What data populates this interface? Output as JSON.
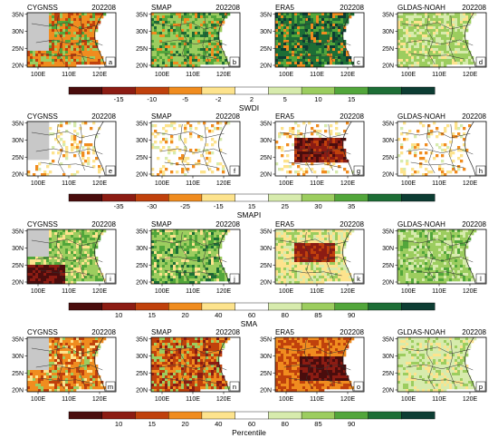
{
  "figure": {
    "rows": [
      {
        "panels": [
          {
            "source": "CYGNSS",
            "date": "202208",
            "letter": "a"
          },
          {
            "source": "SMAP",
            "date": "202208",
            "letter": "b"
          },
          {
            "source": "ERA5",
            "date": "202208",
            "letter": "c"
          },
          {
            "source": "GLDAS-NOAH",
            "date": "202208",
            "letter": "d"
          }
        ],
        "colorbar": {
          "title": "SWDI",
          "ticks": [
            "-15",
            "-10",
            "-5",
            "-2",
            "2",
            "5",
            "10",
            "15"
          ],
          "colors": [
            "#4a0d0d",
            "#8c1c13",
            "#c0410c",
            "#f08c1f",
            "#fde38d",
            "#ffffff",
            "#d7ebad",
            "#9ccd5f",
            "#52a63b",
            "#1d6e36",
            "#0d3d33"
          ]
        }
      },
      {
        "panels": [
          {
            "source": "CYGNSS",
            "date": "202208",
            "letter": "e"
          },
          {
            "source": "SMAP",
            "date": "202208",
            "letter": "f"
          },
          {
            "source": "ERA5",
            "date": "202208",
            "letter": "g"
          },
          {
            "source": "GLDAS-NOAH",
            "date": "202208",
            "letter": "h"
          }
        ],
        "colorbar": {
          "title": "SMAPI",
          "ticks": [
            "-35",
            "-30",
            "-25",
            "-15",
            "15",
            "25",
            "30",
            "35"
          ],
          "colors": [
            "#4a0d0d",
            "#8c1c13",
            "#c0410c",
            "#f08c1f",
            "#fde38d",
            "#ffffff",
            "#d7ebad",
            "#9ccd5f",
            "#52a63b",
            "#1d6e36",
            "#0d3d33"
          ]
        }
      },
      {
        "panels": [
          {
            "source": "CYGNSS",
            "date": "202208",
            "letter": "i"
          },
          {
            "source": "SMAP",
            "date": "202208",
            "letter": "j"
          },
          {
            "source": "ERA5",
            "date": "202208",
            "letter": "k"
          },
          {
            "source": "GLDAS-NOAH",
            "date": "202208",
            "letter": "l"
          }
        ],
        "colorbar": {
          "title": "SMA",
          "ticks": [
            "10",
            "15",
            "20",
            "40",
            "60",
            "80",
            "85",
            "90"
          ],
          "colors": [
            "#4a0d0d",
            "#8c1c13",
            "#c0410c",
            "#f08c1f",
            "#fde38d",
            "#ffffff",
            "#d7ebad",
            "#9ccd5f",
            "#52a63b",
            "#1d6e36",
            "#0d3d33"
          ]
        }
      },
      {
        "panels": [
          {
            "source": "CYGNSS",
            "date": "202208",
            "letter": "m"
          },
          {
            "source": "SMAP",
            "date": "202208",
            "letter": "n"
          },
          {
            "source": "ERA5",
            "date": "202208",
            "letter": "o"
          },
          {
            "source": "GLDAS-NOAH",
            "date": "202208",
            "letter": "p"
          }
        ],
        "colorbar": {
          "title": "Percentile",
          "ticks": [
            "10",
            "15",
            "20",
            "40",
            "60",
            "80",
            "85",
            "90"
          ],
          "colors": [
            "#4a0d0d",
            "#8c1c13",
            "#c0410c",
            "#f08c1f",
            "#fde38d",
            "#ffffff",
            "#d7ebad",
            "#9ccd5f",
            "#52a63b",
            "#1d6e36",
            "#0d3d33"
          ]
        }
      }
    ],
    "lat_ticks": [
      "20N",
      "25N",
      "30N",
      "35N"
    ],
    "lon_ticks": [
      "100E",
      "110E",
      "120E"
    ],
    "colors": {
      "nodata": "#c8c8c8",
      "background": "#ffffff",
      "boundary": "#333333"
    }
  }
}
